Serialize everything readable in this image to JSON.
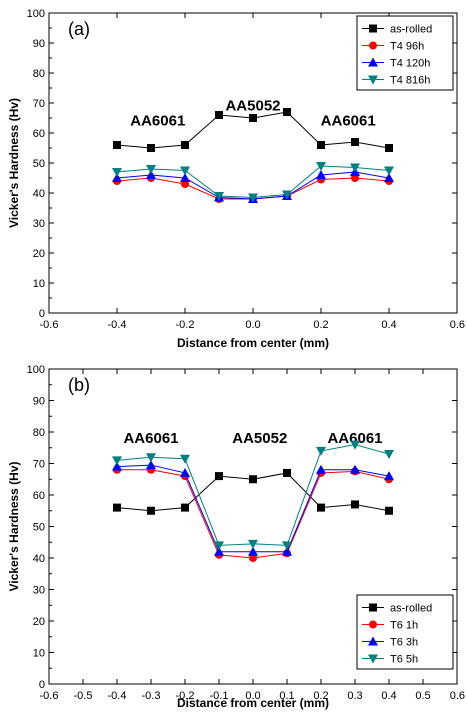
{
  "chart_data": [
    {
      "type": "line",
      "panel_label": "(a)",
      "xlabel": "Distance from center (mm)",
      "ylabel": "Vicker's Hardness (Hv)",
      "xlim": [
        -0.6,
        0.6
      ],
      "ylim": [
        0,
        100
      ],
      "xticks": [
        "-0.6",
        "-0.4",
        "-0.2",
        "0.0",
        "0.2",
        "0.4",
        "0.6"
      ],
      "yticks": [
        "0",
        "10",
        "20",
        "30",
        "40",
        "50",
        "60",
        "70",
        "80",
        "90",
        "100"
      ],
      "legend_position": "top-right",
      "region_labels": [
        {
          "text": "AA6061",
          "x": -0.28,
          "y": 62.5
        },
        {
          "text": "AA5052",
          "x": 0.0,
          "y": 67.5
        },
        {
          "text": "AA6061",
          "x": 0.28,
          "y": 62.5
        }
      ],
      "x": [
        -0.4,
        -0.3,
        -0.2,
        -0.1,
        0.0,
        0.1,
        0.2,
        0.3,
        0.4
      ],
      "series": [
        {
          "name": "as-rolled",
          "color": "#000000",
          "marker": "square",
          "values": [
            56,
            55,
            56,
            66,
            65,
            67,
            56,
            57,
            55
          ]
        },
        {
          "name": "T4 96h",
          "color": "#ff0000",
          "marker": "circle",
          "values": [
            44,
            45,
            43,
            38,
            38,
            39,
            44.5,
            45,
            44
          ]
        },
        {
          "name": "T4 120h",
          "color": "#0000ff",
          "marker": "triangle-up",
          "values": [
            45,
            46,
            45,
            38.5,
            38,
            39,
            46,
            47,
            45
          ]
        },
        {
          "name": "T4 816h",
          "color": "#008080",
          "marker": "triangle-down",
          "values": [
            47,
            48,
            47.5,
            39,
            38.5,
            39.5,
            49,
            48.5,
            47.5
          ]
        }
      ]
    },
    {
      "type": "line",
      "panel_label": "(b)",
      "xlabel": "Distance from center (mm)",
      "ylabel": "Vicker's Hardness (Hv)",
      "xlim": [
        -0.6,
        0.6
      ],
      "ylim": [
        0,
        100
      ],
      "xticks": [
        "-0.6",
        "-0.5",
        "-0.4",
        "-0.3",
        "-0.2",
        "-0.1",
        "0.0",
        "0.1",
        "0.2",
        "0.3",
        "0.4",
        "0.5",
        "0.6"
      ],
      "yticks": [
        "0",
        "10",
        "20",
        "30",
        "40",
        "50",
        "60",
        "70",
        "80",
        "90",
        "100"
      ],
      "legend_position": "bottom-right",
      "region_labels": [
        {
          "text": "AA6061",
          "x": -0.3,
          "y": 76.5
        },
        {
          "text": "AA5052",
          "x": 0.02,
          "y": 76.5
        },
        {
          "text": "AA6061",
          "x": 0.3,
          "y": 76.5
        }
      ],
      "x": [
        -0.4,
        -0.3,
        -0.2,
        -0.1,
        0.0,
        0.1,
        0.2,
        0.3,
        0.4
      ],
      "series": [
        {
          "name": "as-rolled",
          "color": "#000000",
          "marker": "square",
          "values": [
            56,
            55,
            56,
            66,
            65,
            67,
            56,
            57,
            55
          ]
        },
        {
          "name": "T6 1h",
          "color": "#ff0000",
          "marker": "circle",
          "values": [
            68,
            68,
            66,
            41,
            40,
            41.5,
            67,
            67.5,
            65
          ]
        },
        {
          "name": "T6 3h",
          "color": "#0000ff",
          "marker": "triangle-up",
          "values": [
            69,
            69.5,
            67,
            42,
            42,
            42,
            68,
            68,
            66
          ]
        },
        {
          "name": "T6 5h",
          "color": "#008080",
          "marker": "triangle-down",
          "values": [
            71,
            72,
            71.5,
            44,
            44.5,
            44,
            74,
            76,
            73
          ]
        }
      ]
    }
  ]
}
